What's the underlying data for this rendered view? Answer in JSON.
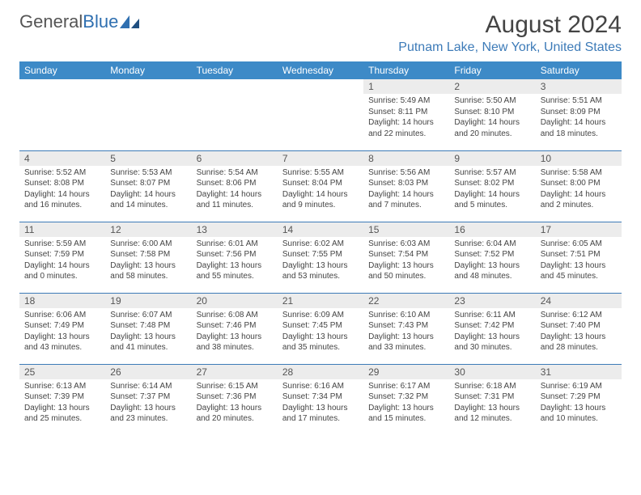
{
  "logo": {
    "text1": "General",
    "text2": "Blue"
  },
  "title": {
    "month": "August 2024",
    "location": "Putnam Lake, New York, United States"
  },
  "style": {
    "header_bg": "#3d8ac7",
    "accent": "#3d7bb8",
    "daynum_bg": "#ececec",
    "text_color": "#444444",
    "page_bg": "#ffffff",
    "title_fontsize": 30,
    "location_fontsize": 16,
    "dayheader_fontsize": 12,
    "daynum_fontsize": 12,
    "body_fontsize": 10
  },
  "day_headers": [
    "Sunday",
    "Monday",
    "Tuesday",
    "Wednesday",
    "Thursday",
    "Friday",
    "Saturday"
  ],
  "weeks": [
    [
      null,
      null,
      null,
      null,
      {
        "n": "1",
        "sr": "Sunrise: 5:49 AM",
        "ss": "Sunset: 8:11 PM",
        "d1": "Daylight: 14 hours",
        "d2": "and 22 minutes."
      },
      {
        "n": "2",
        "sr": "Sunrise: 5:50 AM",
        "ss": "Sunset: 8:10 PM",
        "d1": "Daylight: 14 hours",
        "d2": "and 20 minutes."
      },
      {
        "n": "3",
        "sr": "Sunrise: 5:51 AM",
        "ss": "Sunset: 8:09 PM",
        "d1": "Daylight: 14 hours",
        "d2": "and 18 minutes."
      }
    ],
    [
      {
        "n": "4",
        "sr": "Sunrise: 5:52 AM",
        "ss": "Sunset: 8:08 PM",
        "d1": "Daylight: 14 hours",
        "d2": "and 16 minutes."
      },
      {
        "n": "5",
        "sr": "Sunrise: 5:53 AM",
        "ss": "Sunset: 8:07 PM",
        "d1": "Daylight: 14 hours",
        "d2": "and 14 minutes."
      },
      {
        "n": "6",
        "sr": "Sunrise: 5:54 AM",
        "ss": "Sunset: 8:06 PM",
        "d1": "Daylight: 14 hours",
        "d2": "and 11 minutes."
      },
      {
        "n": "7",
        "sr": "Sunrise: 5:55 AM",
        "ss": "Sunset: 8:04 PM",
        "d1": "Daylight: 14 hours",
        "d2": "and 9 minutes."
      },
      {
        "n": "8",
        "sr": "Sunrise: 5:56 AM",
        "ss": "Sunset: 8:03 PM",
        "d1": "Daylight: 14 hours",
        "d2": "and 7 minutes."
      },
      {
        "n": "9",
        "sr": "Sunrise: 5:57 AM",
        "ss": "Sunset: 8:02 PM",
        "d1": "Daylight: 14 hours",
        "d2": "and 5 minutes."
      },
      {
        "n": "10",
        "sr": "Sunrise: 5:58 AM",
        "ss": "Sunset: 8:00 PM",
        "d1": "Daylight: 14 hours",
        "d2": "and 2 minutes."
      }
    ],
    [
      {
        "n": "11",
        "sr": "Sunrise: 5:59 AM",
        "ss": "Sunset: 7:59 PM",
        "d1": "Daylight: 14 hours",
        "d2": "and 0 minutes."
      },
      {
        "n": "12",
        "sr": "Sunrise: 6:00 AM",
        "ss": "Sunset: 7:58 PM",
        "d1": "Daylight: 13 hours",
        "d2": "and 58 minutes."
      },
      {
        "n": "13",
        "sr": "Sunrise: 6:01 AM",
        "ss": "Sunset: 7:56 PM",
        "d1": "Daylight: 13 hours",
        "d2": "and 55 minutes."
      },
      {
        "n": "14",
        "sr": "Sunrise: 6:02 AM",
        "ss": "Sunset: 7:55 PM",
        "d1": "Daylight: 13 hours",
        "d2": "and 53 minutes."
      },
      {
        "n": "15",
        "sr": "Sunrise: 6:03 AM",
        "ss": "Sunset: 7:54 PM",
        "d1": "Daylight: 13 hours",
        "d2": "and 50 minutes."
      },
      {
        "n": "16",
        "sr": "Sunrise: 6:04 AM",
        "ss": "Sunset: 7:52 PM",
        "d1": "Daylight: 13 hours",
        "d2": "and 48 minutes."
      },
      {
        "n": "17",
        "sr": "Sunrise: 6:05 AM",
        "ss": "Sunset: 7:51 PM",
        "d1": "Daylight: 13 hours",
        "d2": "and 45 minutes."
      }
    ],
    [
      {
        "n": "18",
        "sr": "Sunrise: 6:06 AM",
        "ss": "Sunset: 7:49 PM",
        "d1": "Daylight: 13 hours",
        "d2": "and 43 minutes."
      },
      {
        "n": "19",
        "sr": "Sunrise: 6:07 AM",
        "ss": "Sunset: 7:48 PM",
        "d1": "Daylight: 13 hours",
        "d2": "and 41 minutes."
      },
      {
        "n": "20",
        "sr": "Sunrise: 6:08 AM",
        "ss": "Sunset: 7:46 PM",
        "d1": "Daylight: 13 hours",
        "d2": "and 38 minutes."
      },
      {
        "n": "21",
        "sr": "Sunrise: 6:09 AM",
        "ss": "Sunset: 7:45 PM",
        "d1": "Daylight: 13 hours",
        "d2": "and 35 minutes."
      },
      {
        "n": "22",
        "sr": "Sunrise: 6:10 AM",
        "ss": "Sunset: 7:43 PM",
        "d1": "Daylight: 13 hours",
        "d2": "and 33 minutes."
      },
      {
        "n": "23",
        "sr": "Sunrise: 6:11 AM",
        "ss": "Sunset: 7:42 PM",
        "d1": "Daylight: 13 hours",
        "d2": "and 30 minutes."
      },
      {
        "n": "24",
        "sr": "Sunrise: 6:12 AM",
        "ss": "Sunset: 7:40 PM",
        "d1": "Daylight: 13 hours",
        "d2": "and 28 minutes."
      }
    ],
    [
      {
        "n": "25",
        "sr": "Sunrise: 6:13 AM",
        "ss": "Sunset: 7:39 PM",
        "d1": "Daylight: 13 hours",
        "d2": "and 25 minutes."
      },
      {
        "n": "26",
        "sr": "Sunrise: 6:14 AM",
        "ss": "Sunset: 7:37 PM",
        "d1": "Daylight: 13 hours",
        "d2": "and 23 minutes."
      },
      {
        "n": "27",
        "sr": "Sunrise: 6:15 AM",
        "ss": "Sunset: 7:36 PM",
        "d1": "Daylight: 13 hours",
        "d2": "and 20 minutes."
      },
      {
        "n": "28",
        "sr": "Sunrise: 6:16 AM",
        "ss": "Sunset: 7:34 PM",
        "d1": "Daylight: 13 hours",
        "d2": "and 17 minutes."
      },
      {
        "n": "29",
        "sr": "Sunrise: 6:17 AM",
        "ss": "Sunset: 7:32 PM",
        "d1": "Daylight: 13 hours",
        "d2": "and 15 minutes."
      },
      {
        "n": "30",
        "sr": "Sunrise: 6:18 AM",
        "ss": "Sunset: 7:31 PM",
        "d1": "Daylight: 13 hours",
        "d2": "and 12 minutes."
      },
      {
        "n": "31",
        "sr": "Sunrise: 6:19 AM",
        "ss": "Sunset: 7:29 PM",
        "d1": "Daylight: 13 hours",
        "d2": "and 10 minutes."
      }
    ]
  ]
}
